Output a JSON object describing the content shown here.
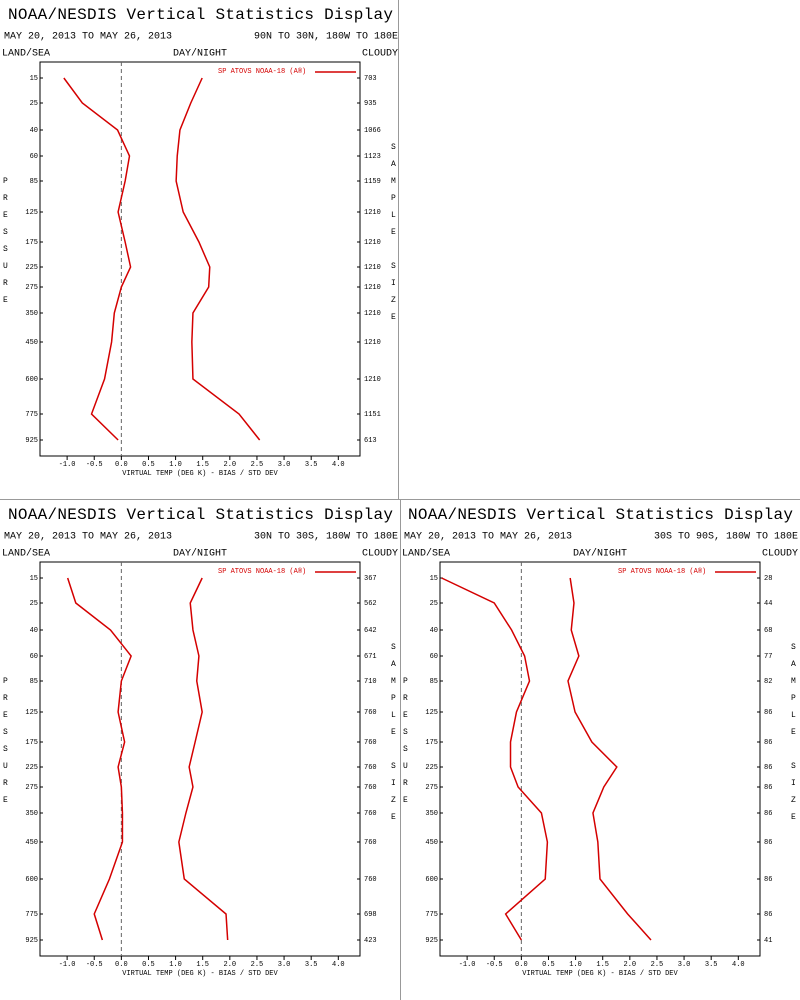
{
  "chart_data": [
    {
      "type": "line",
      "title": "NOAA/NESDIS Vertical Statistics Display",
      "subtitle": "MAY 20, 2013 TO MAY 26, 2013",
      "region": "90N TO 30N, 180W TO 180E",
      "left_header": "LAND/SEA",
      "center_header": "DAY/NIGHT",
      "right_header": "CLOUDY",
      "legend": "SP ATOVS NOAA-18 (A®)",
      "x_label": "VIRTUAL TEMP (DEG K) - BIAS / STD DEV",
      "y_label": "PRESSURE",
      "y2_label": "SAMPLE SIZE",
      "categories": [
        15,
        25,
        40,
        60,
        85,
        125,
        175,
        225,
        275,
        350,
        450,
        600,
        775,
        925
      ],
      "sample_size": [
        703,
        935,
        1066,
        1123,
        1159,
        1210,
        1210,
        1210,
        1210,
        1210,
        1210,
        1210,
        1151,
        613
      ],
      "series": [
        {
          "color": "#d40000",
          "values": [
            -1.06,
            -0.72,
            -0.07,
            0.15,
            0.07,
            -0.06,
            0.07,
            0.17,
            0.0,
            -0.13,
            -0.18,
            -0.31,
            -0.55,
            -0.06
          ]
        },
        {
          "color": "#d40000",
          "values": [
            1.49,
            1.28,
            1.08,
            1.03,
            1.01,
            1.14,
            1.43,
            1.63,
            1.61,
            1.32,
            1.3,
            1.32,
            2.17,
            2.55
          ]
        }
      ],
      "xlim": [
        -1.5,
        4.4
      ],
      "xticks": [
        {
          "value": -1,
          "label": "-1.0"
        },
        {
          "value": -0.5,
          "label": "-0.5"
        },
        {
          "value": 0,
          "label": "0.0"
        },
        {
          "value": 0.5,
          "label": "0.5"
        },
        {
          "value": 1,
          "label": "1.0"
        },
        {
          "value": 1.5,
          "label": "1.5"
        },
        {
          "value": 2,
          "label": "2.0"
        },
        {
          "value": 2.5,
          "label": "2.5"
        },
        {
          "value": 3,
          "label": "3.0"
        },
        {
          "value": 3.5,
          "label": "3.5"
        },
        {
          "value": 4,
          "label": "4.0"
        }
      ],
      "zero_line": true
    },
    {
      "type": "line",
      "title": "NOAA/NESDIS Vertical Statistics Display",
      "subtitle": "MAY 20, 2013 TO MAY 26, 2013",
      "region": "30N TO 30S, 180W TO 180E",
      "left_header": "LAND/SEA",
      "center_header": "DAY/NIGHT",
      "right_header": "CLOUDY",
      "legend": "SP ATOVS NOAA-18 (A®)",
      "x_label": "VIRTUAL TEMP (DEG K) - BIAS / STD DEV",
      "y_label": "PRESSURE",
      "y2_label": "SAMPLE SIZE",
      "categories": [
        15,
        25,
        40,
        60,
        85,
        125,
        175,
        225,
        275,
        350,
        450,
        600,
        775,
        925
      ],
      "sample_size": [
        367,
        562,
        642,
        671,
        710,
        760,
        760,
        760,
        760,
        760,
        760,
        760,
        698,
        423
      ],
      "series": [
        {
          "color": "#d40000",
          "values": [
            -0.99,
            -0.84,
            -0.2,
            0.18,
            0.0,
            -0.06,
            0.06,
            -0.06,
            0.0,
            0.02,
            0.02,
            -0.22,
            -0.5,
            -0.35
          ]
        },
        {
          "color": "#d40000",
          "values": [
            1.49,
            1.27,
            1.32,
            1.43,
            1.39,
            1.49,
            1.36,
            1.25,
            1.32,
            1.19,
            1.06,
            1.16,
            1.93,
            1.96
          ]
        }
      ],
      "xlim": [
        -1.5,
        4.4
      ],
      "xticks": [
        {
          "value": -1,
          "label": "-1.0"
        },
        {
          "value": -0.5,
          "label": "-0.5"
        },
        {
          "value": 0,
          "label": "0.0"
        },
        {
          "value": 0.5,
          "label": "0.5"
        },
        {
          "value": 1,
          "label": "1.0"
        },
        {
          "value": 1.5,
          "label": "1.5"
        },
        {
          "value": 2,
          "label": "2.0"
        },
        {
          "value": 2.5,
          "label": "2.5"
        },
        {
          "value": 3,
          "label": "3.0"
        },
        {
          "value": 3.5,
          "label": "3.5"
        },
        {
          "value": 4,
          "label": "4.0"
        }
      ],
      "zero_line": true
    },
    {
      "type": "line",
      "title": "NOAA/NESDIS Vertical Statistics Display",
      "subtitle": "MAY 20, 2013 TO MAY 26, 2013",
      "region": "30S TO 90S, 180W TO 180E",
      "left_header": "LAND/SEA",
      "center_header": "DAY/NIGHT",
      "right_header": "CLOUDY",
      "legend": "SP ATOVS NOAA-18 (A®)",
      "x_label": "VIRTUAL TEMP (DEG K) - BIAS / STD DEV",
      "y_label": "PRESSURE",
      "y2_label": "SAMPLE SIZE",
      "categories": [
        15,
        25,
        40,
        60,
        85,
        125,
        175,
        225,
        275,
        350,
        450,
        600,
        775,
        925
      ],
      "sample_size": [
        28,
        44,
        68,
        77,
        82,
        86,
        86,
        86,
        86,
        86,
        86,
        86,
        86,
        41
      ],
      "series": [
        {
          "color": "#d40000",
          "values": [
            -1.47,
            -0.5,
            -0.18,
            0.06,
            0.15,
            -0.09,
            -0.2,
            -0.2,
            -0.06,
            0.37,
            0.48,
            0.44,
            -0.29,
            0.0
          ]
        },
        {
          "color": "#d40000",
          "values": [
            0.9,
            0.97,
            0.92,
            1.06,
            0.86,
            0.99,
            1.3,
            1.76,
            1.52,
            1.32,
            1.41,
            1.45,
            1.96,
            2.39
          ]
        }
      ],
      "xlim": [
        -1.5,
        4.4
      ],
      "xticks": [
        {
          "value": -1,
          "label": "-1.0"
        },
        {
          "value": -0.5,
          "label": "-0.5"
        },
        {
          "value": 0,
          "label": "0.0"
        },
        {
          "value": 0.5,
          "label": "0.5"
        },
        {
          "value": 1,
          "label": "1.0"
        },
        {
          "value": 1.5,
          "label": "1.5"
        },
        {
          "value": 2,
          "label": "2.0"
        },
        {
          "value": 2.5,
          "label": "2.5"
        },
        {
          "value": 3,
          "label": "3.0"
        },
        {
          "value": 3.5,
          "label": "3.5"
        },
        {
          "value": 4,
          "label": "4.0"
        }
      ],
      "zero_line": true
    }
  ]
}
